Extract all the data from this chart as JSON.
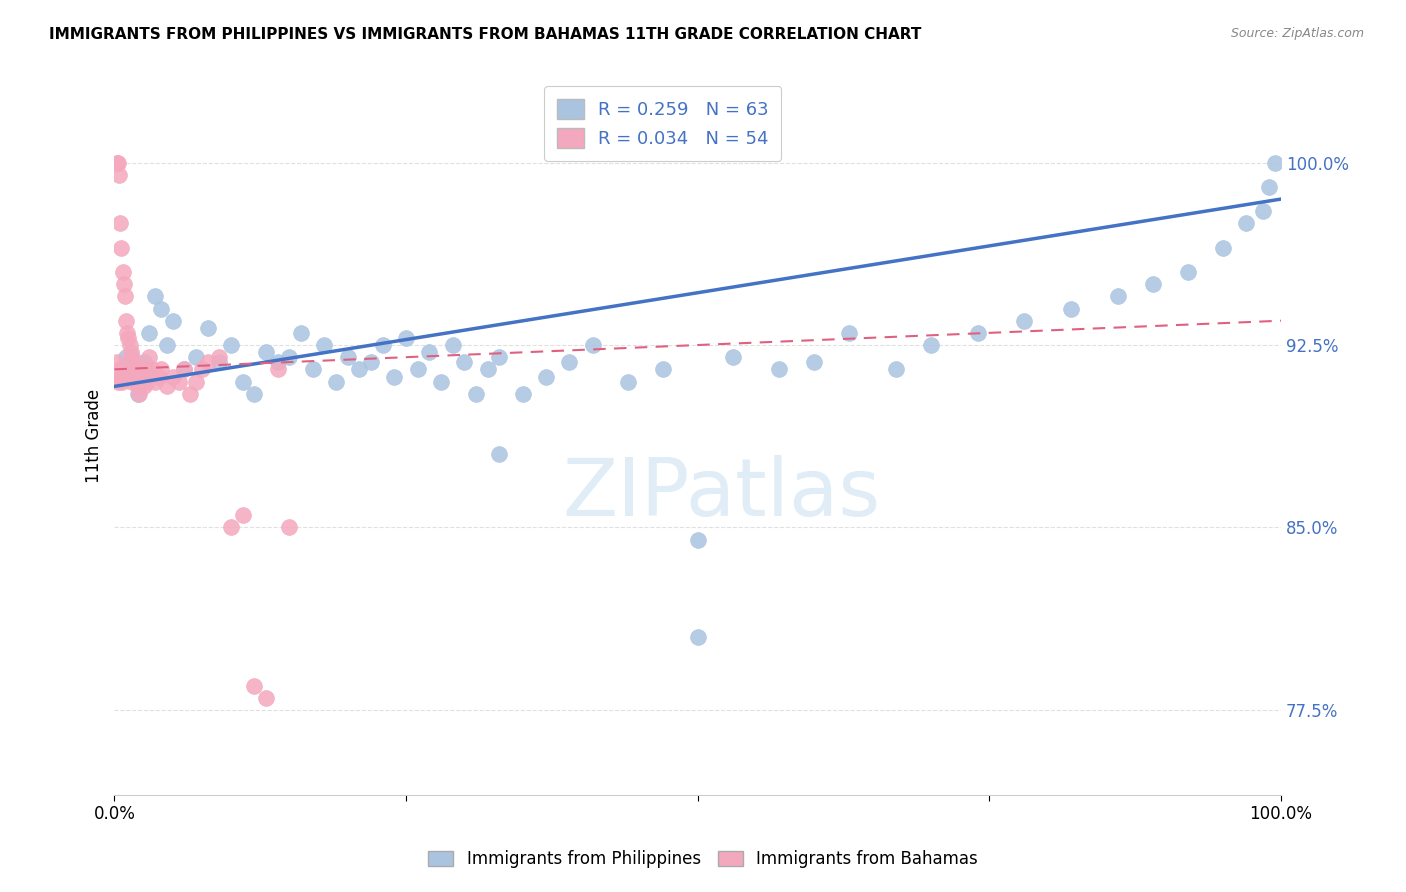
{
  "title": "IMMIGRANTS FROM PHILIPPINES VS IMMIGRANTS FROM BAHAMAS 11TH GRADE CORRELATION CHART",
  "source": "Source: ZipAtlas.com",
  "ylabel": "11th Grade",
  "y_ticks": [
    77.5,
    85.0,
    92.5,
    100.0
  ],
  "y_tick_labels": [
    "77.5%",
    "85.0%",
    "92.5%",
    "100.0%"
  ],
  "xlim": [
    0.0,
    100.0
  ],
  "ylim": [
    74.0,
    103.5
  ],
  "r_blue": 0.259,
  "n_blue": 63,
  "r_pink": 0.034,
  "n_pink": 54,
  "blue_color": "#aac4e0",
  "blue_line_color": "#4472C4",
  "pink_color": "#f4a8be",
  "pink_line_color": "#e06080",
  "blue_scatter_x": [
    1.0,
    1.5,
    2.0,
    2.5,
    3.0,
    3.5,
    4.0,
    4.5,
    5.0,
    6.0,
    7.0,
    8.0,
    9.0,
    10.0,
    11.0,
    12.0,
    13.0,
    14.0,
    15.0,
    16.0,
    17.0,
    18.0,
    19.0,
    20.0,
    21.0,
    22.0,
    23.0,
    24.0,
    25.0,
    26.0,
    27.0,
    28.0,
    29.0,
    30.0,
    31.0,
    32.0,
    33.0,
    35.0,
    37.0,
    39.0,
    41.0,
    44.0,
    47.0,
    50.0,
    53.0,
    57.0,
    60.0,
    63.0,
    67.0,
    70.0,
    74.0,
    78.0,
    82.0,
    86.0,
    89.0,
    92.0,
    95.0,
    97.0,
    98.5,
    99.0,
    99.5,
    33.0,
    50.0
  ],
  "blue_scatter_y": [
    92.0,
    91.5,
    90.5,
    91.8,
    93.0,
    94.5,
    94.0,
    92.5,
    93.5,
    91.5,
    92.0,
    93.2,
    91.8,
    92.5,
    91.0,
    90.5,
    92.2,
    91.8,
    92.0,
    93.0,
    91.5,
    92.5,
    91.0,
    92.0,
    91.5,
    91.8,
    92.5,
    91.2,
    92.8,
    91.5,
    92.2,
    91.0,
    92.5,
    91.8,
    90.5,
    91.5,
    92.0,
    90.5,
    91.2,
    91.8,
    92.5,
    91.0,
    91.5,
    84.5,
    92.0,
    91.5,
    91.8,
    93.0,
    91.5,
    92.5,
    93.0,
    93.5,
    94.0,
    94.5,
    95.0,
    95.5,
    96.5,
    97.5,
    98.0,
    99.0,
    100.0,
    88.0,
    80.5
  ],
  "pink_scatter_x": [
    0.2,
    0.3,
    0.4,
    0.5,
    0.6,
    0.7,
    0.8,
    0.9,
    1.0,
    1.1,
    1.2,
    1.3,
    1.4,
    1.5,
    1.6,
    1.7,
    1.8,
    1.9,
    2.0,
    2.1,
    2.2,
    2.3,
    2.5,
    2.7,
    3.0,
    3.2,
    3.5,
    4.0,
    4.5,
    5.0,
    5.5,
    6.0,
    6.5,
    7.0,
    7.5,
    8.0,
    9.0,
    10.0,
    11.0,
    12.0,
    13.0,
    14.0,
    15.0,
    0.35,
    0.45,
    0.55,
    2.8,
    3.8,
    0.25,
    0.65,
    1.15,
    1.55,
    2.15,
    2.55
  ],
  "pink_scatter_y": [
    100.0,
    100.0,
    99.5,
    97.5,
    96.5,
    95.5,
    95.0,
    94.5,
    93.5,
    93.0,
    92.8,
    92.5,
    92.2,
    92.0,
    91.8,
    91.5,
    91.3,
    91.0,
    90.8,
    90.5,
    91.5,
    91.2,
    90.8,
    91.5,
    92.0,
    91.5,
    91.0,
    91.5,
    90.8,
    91.2,
    91.0,
    91.5,
    90.5,
    91.0,
    91.5,
    91.8,
    92.0,
    85.0,
    85.5,
    78.5,
    78.0,
    91.5,
    85.0,
    91.0,
    91.5,
    91.2,
    91.0,
    91.2,
    91.8,
    91.0,
    91.2,
    91.0,
    91.2,
    91.5
  ]
}
